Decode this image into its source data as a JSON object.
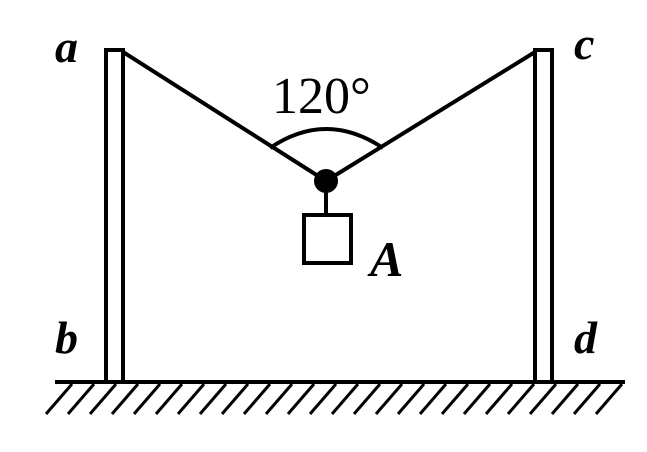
{
  "labels": {
    "top_left": "a",
    "bottom_left": "b",
    "top_right": "c",
    "bottom_right": "d",
    "mass": "A",
    "angle": "120°"
  },
  "colors": {
    "ink": "#000000",
    "background": "#ffffff"
  }
}
